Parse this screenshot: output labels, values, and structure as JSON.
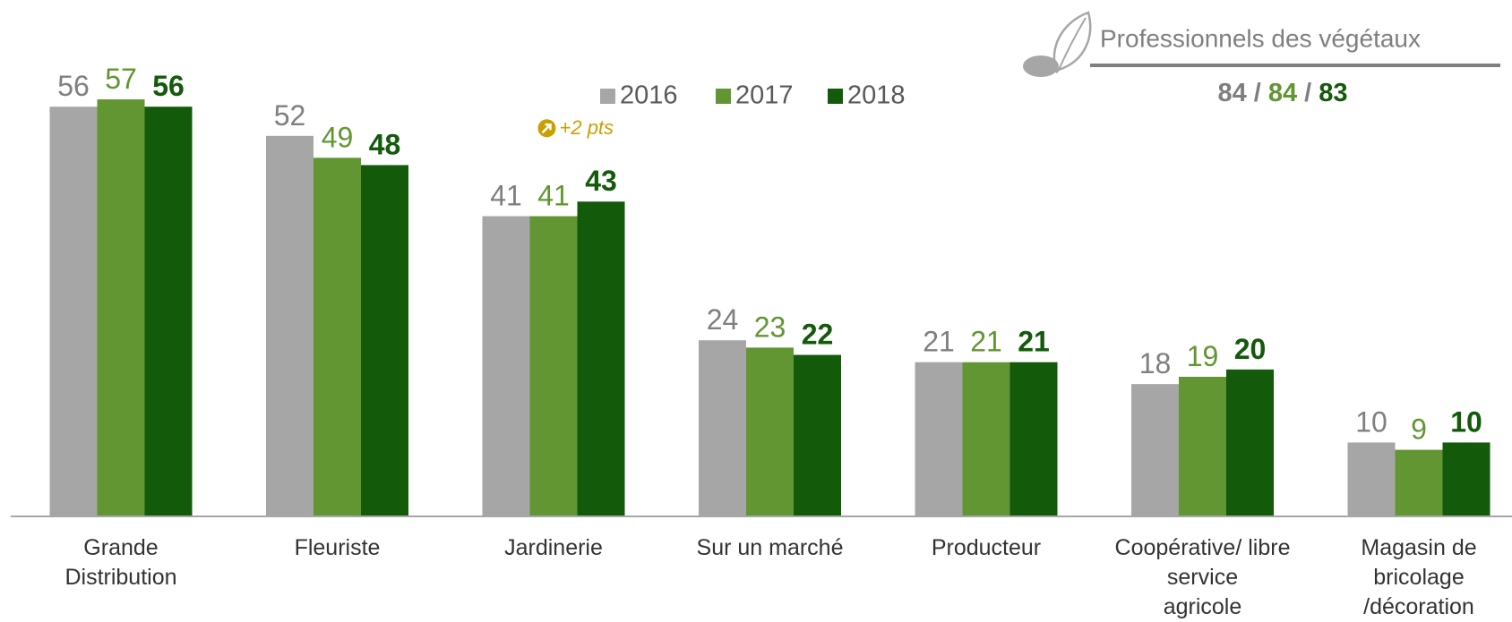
{
  "chart_data": {
    "type": "bar",
    "categories": [
      "Grande\nDistribution",
      "Fleuriste",
      "Jardinerie",
      "Sur un marché",
      "Producteur",
      "Coopérative/ libre\nservice\nagricole",
      "Magasin de\nbricolage\n/décoration"
    ],
    "series": [
      {
        "name": "2016",
        "color": "#a6a6a6",
        "label_color": "#7f7f7f",
        "values": [
          56,
          52,
          41,
          24,
          21,
          18,
          10
        ]
      },
      {
        "name": "2017",
        "color": "#629632",
        "label_color": "#629632",
        "values": [
          57,
          49,
          41,
          23,
          21,
          19,
          9
        ]
      },
      {
        "name": "2018",
        "color": "#135a0a",
        "label_color": "#135a0a",
        "bold_labels": true,
        "values": [
          56,
          48,
          43,
          22,
          21,
          20,
          10
        ]
      }
    ],
    "ylim": [
      0,
      70
    ],
    "annotation": {
      "text": "+2 pts",
      "category_index": 2,
      "color": "#c8a000"
    },
    "summary": {
      "title": "Professionnels des végétaux",
      "separator": "/",
      "values": [
        84,
        84,
        83
      ]
    }
  }
}
